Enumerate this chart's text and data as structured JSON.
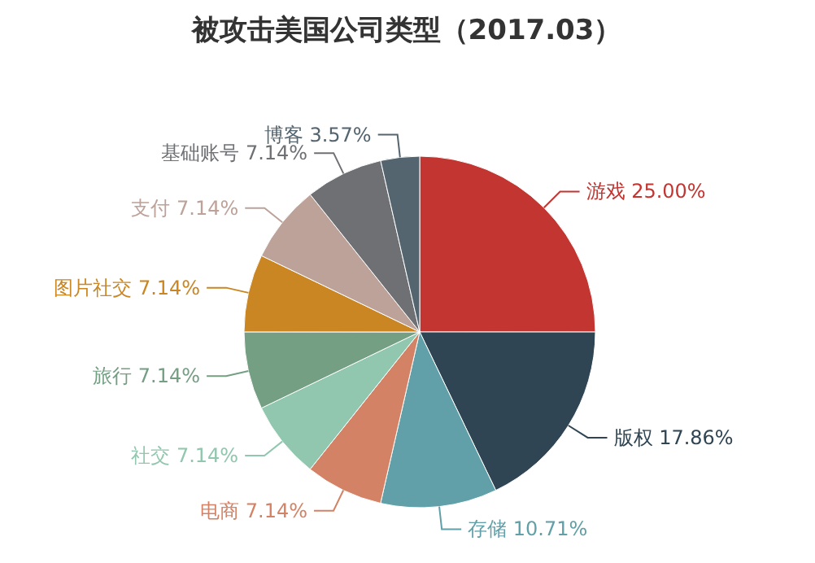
{
  "chart_data": {
    "type": "pie",
    "title": "被攻击美国公司类型（2017.03）",
    "categories": [
      "游戏",
      "版权",
      "存储",
      "电商",
      "社交",
      "旅行",
      "图片社交",
      "支付",
      "基础账号",
      "博客"
    ],
    "values": [
      25.0,
      17.86,
      10.71,
      7.14,
      7.14,
      7.14,
      7.14,
      7.14,
      7.14,
      3.57
    ],
    "value_labels": [
      "25.00%",
      "17.86%",
      "10.71%",
      "7.14%",
      "7.14%",
      "7.14%",
      "7.14%",
      "7.14%",
      "7.14%",
      "3.57%"
    ],
    "colors": [
      "#c23531",
      "#2f4554",
      "#61a0a8",
      "#d48265",
      "#91c7ae",
      "#749f83",
      "#ca8622",
      "#bda29a",
      "#6e7074",
      "#546570"
    ]
  }
}
